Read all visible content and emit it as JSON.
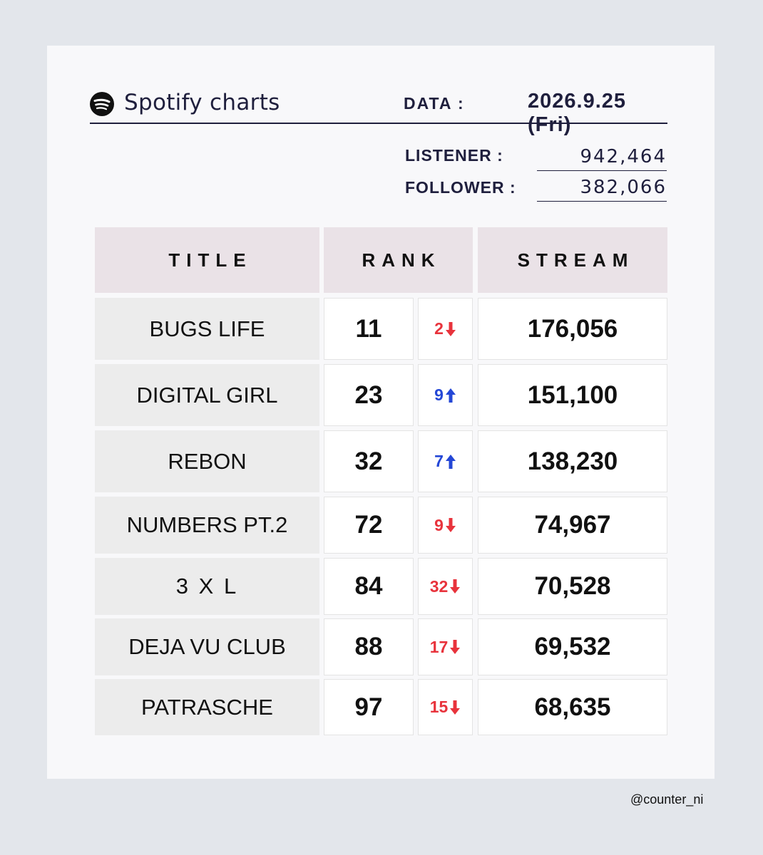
{
  "header": {
    "brand": "Spotify charts",
    "date_label": "DATA :",
    "date_value": "2026.9.25 (Fri)"
  },
  "stats": {
    "listener_label": "LISTENER :",
    "listener_value": "942,464",
    "follower_label": "FOLLOWER :",
    "follower_value": "382,066"
  },
  "table": {
    "headers": {
      "title": "TITLE",
      "rank": "RANK",
      "stream": "STREAM"
    },
    "rows": [
      {
        "title": "BUGS LIFE",
        "rank": "11",
        "change": "2",
        "direction": "down",
        "stream": "176,056"
      },
      {
        "title": "DIGITAL GIRL",
        "rank": "23",
        "change": "9",
        "direction": "up",
        "stream": "151,100"
      },
      {
        "title": "REBON",
        "rank": "32",
        "change": "7",
        "direction": "up",
        "stream": "138,230"
      },
      {
        "title": "NUMBERS PT.2",
        "rank": "72",
        "change": "9",
        "direction": "down",
        "stream": "74,967"
      },
      {
        "title": "3 X L",
        "rank": "84",
        "change": "32",
        "direction": "down",
        "stream": "70,528"
      },
      {
        "title": "DEJA VU CLUB",
        "rank": "88",
        "change": "17",
        "direction": "down",
        "stream": "69,532"
      },
      {
        "title": "PATRASCHE",
        "rank": "97",
        "change": "15",
        "direction": "down",
        "stream": "68,635"
      }
    ]
  },
  "colors": {
    "up": "#2447d6",
    "down": "#e8333c",
    "header_bg": "#eae2e7",
    "title_bg": "#ececec"
  },
  "footer": {
    "handle": "@counter_ni"
  }
}
